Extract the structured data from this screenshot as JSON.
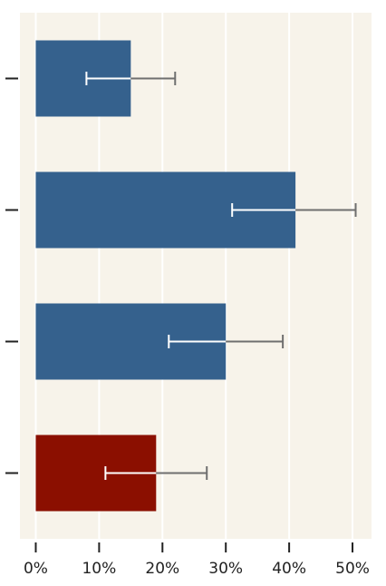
{
  "chart_data": {
    "type": "bar",
    "orientation": "horizontal",
    "title": "",
    "xlabel": "",
    "ylabel": "",
    "xlim": [
      -2.5,
      53.0
    ],
    "grid": true,
    "categories": [
      "",
      "",
      "",
      ""
    ],
    "series": [
      {
        "values": [
          15.0,
          41.0,
          30.0,
          19.0
        ],
        "error_low": [
          8.0,
          31.0,
          21.0,
          11.0
        ],
        "error_high": [
          22.0,
          50.5,
          39.0,
          27.0
        ],
        "colors": [
          "#35618d",
          "#35618d",
          "#35618d",
          "#8b0f00"
        ]
      }
    ],
    "x_ticks": [
      {
        "value": 0,
        "label": "0%"
      },
      {
        "value": 10,
        "label": "10%"
      },
      {
        "value": 20,
        "label": "20%"
      },
      {
        "value": 30,
        "label": "30%"
      },
      {
        "value": 40,
        "label": "40%"
      },
      {
        "value": 50,
        "label": "50%"
      }
    ],
    "colors": {
      "plot_background": "#f7f3ea",
      "grid": "#ffffff",
      "error_inside": "#ffffff",
      "error_outside": "#6f6f6f",
      "tick": "#222222"
    }
  }
}
